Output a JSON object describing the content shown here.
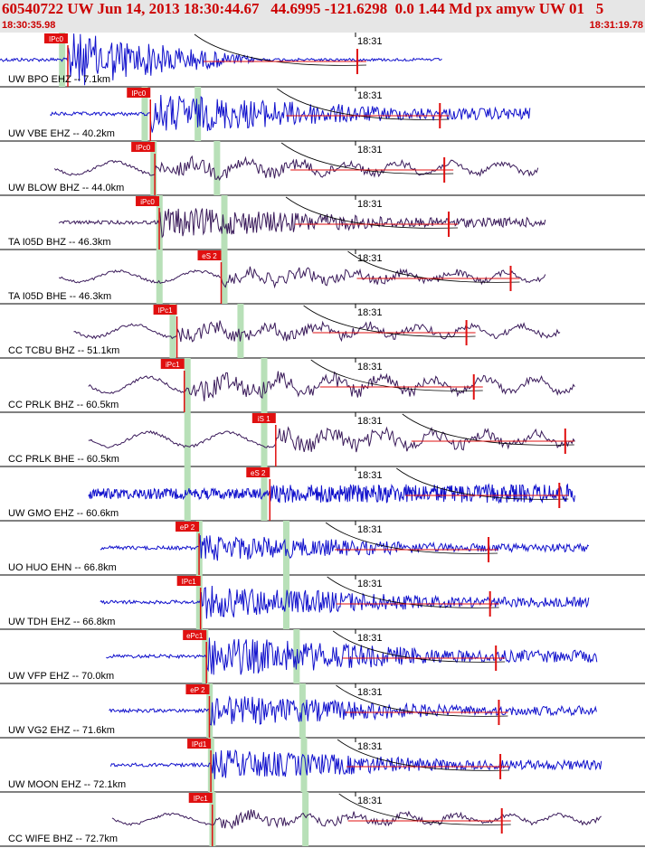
{
  "header": {
    "title": "60540722 UW Jun 14, 2013 18:30:44.67   44.6995 -121.6298  0.0 1.44 Md px amyw UW 01   5",
    "start_time": "18:30:35.98",
    "end_time": "18:31:19.78"
  },
  "time_mark_label": "18:31",
  "colors": {
    "header_text": "#cc0000",
    "header_bg": "#e6e6e6",
    "trace_blue": "#1010cc",
    "trace_purple": "#3a1a5a",
    "pick_box": "#e01010",
    "pick_text": "#ffffff",
    "green_band": "#b8e0b8",
    "red_line": "#e01010",
    "label_text": "#000000"
  },
  "traces": [
    {
      "station": "UW BPO EHZ -- 7.1km",
      "color": "blue",
      "pick": "IPc0",
      "pick_sec": 4.6,
      "green_sec": 4.0,
      "start_sec": 0.0,
      "end_sec": 30.0,
      "amp": 1.0,
      "big": true
    },
    {
      "station": "UW VBE EHZ -- 40.2km",
      "color": "blue",
      "pick": "IPc0",
      "pick_sec": 10.2,
      "green_sec": 9.6,
      "green2_sec": 13.2,
      "start_sec": 3.4,
      "end_sec": 36.0,
      "amp": 0.9
    },
    {
      "station": "UW BLOW BHZ -- 44.0km",
      "color": "purple",
      "pick": "IPc0",
      "pick_sec": 10.5,
      "green_sec": 10.2,
      "green2_sec": 14.5,
      "start_sec": 3.7,
      "end_sec": 36.5,
      "amp": 0.7,
      "lowfreq": true
    },
    {
      "station": "TA I05D BHZ -- 46.3km",
      "color": "purple",
      "pick": "iPc0",
      "pick_sec": 10.8,
      "green_sec": 10.6,
      "green2_sec": 15.0,
      "start_sec": 4.0,
      "end_sec": 37.0,
      "amp": 0.7
    },
    {
      "station": "TA I05D BHE -- 46.3km",
      "color": "purple",
      "pick": "eS 2",
      "pick_sec": 15.0,
      "green_sec": 10.6,
      "green2_sec": 15.0,
      "start_sec": 4.0,
      "end_sec": 37.0,
      "amp": 0.6,
      "lowfreq": true
    },
    {
      "station": "CC TCBU BHZ -- 51.1km",
      "color": "purple",
      "pick": "IPc1",
      "pick_sec": 12.0,
      "green_sec": 11.5,
      "green2_sec": 16.1,
      "start_sec": 5.0,
      "end_sec": 38.0,
      "amp": 0.7,
      "lowfreq": true
    },
    {
      "station": "CC PRLK BHZ -- 60.5km",
      "color": "purple",
      "pick": "iPc1",
      "pick_sec": 12.5,
      "green_sec": 12.5,
      "green2_sec": 17.7,
      "start_sec": 6.0,
      "end_sec": 39.0,
      "amp": 0.9,
      "lowfreq": true
    },
    {
      "station": "CC PRLK BHE -- 60.5km",
      "color": "purple",
      "pick": "iS 1",
      "pick_sec": 18.7,
      "green_sec": 12.5,
      "green2_sec": 17.7,
      "start_sec": 6.0,
      "end_sec": 39.0,
      "amp": 0.8,
      "lowfreq": true
    },
    {
      "station": "UW GMO EHZ -- 60.6km",
      "color": "blue",
      "pick": "eS 2",
      "pick_sec": 18.3,
      "green_sec": 12.5,
      "green2_sec": 17.7,
      "start_sec": 6.0,
      "end_sec": 39.0,
      "amp": 0.85,
      "noise": true
    },
    {
      "station": "UO HUO EHN -- 66.8km",
      "color": "blue",
      "pick": "eP 2",
      "pick_sec": 13.5,
      "green_sec": 13.3,
      "green2_sec": 19.2,
      "start_sec": 6.8,
      "end_sec": 40.0,
      "amp": 0.6
    },
    {
      "station": "UW TDH EHZ -- 66.8km",
      "color": "blue",
      "pick": "IPc1",
      "pick_sec": 13.6,
      "green_sec": 13.3,
      "green2_sec": 19.2,
      "start_sec": 6.8,
      "end_sec": 40.0,
      "amp": 0.75
    },
    {
      "station": "UW VFP EHZ -- 70.0km",
      "color": "blue",
      "pick": "ePc1",
      "pick_sec": 14.0,
      "green_sec": 13.7,
      "green2_sec": 19.9,
      "start_sec": 7.2,
      "end_sec": 40.5,
      "amp": 0.9
    },
    {
      "station": "UW VG2 EHZ -- 71.6km",
      "color": "blue",
      "pick": "eP 2",
      "pick_sec": 14.2,
      "green_sec": 14.0,
      "green2_sec": 20.3,
      "start_sec": 7.4,
      "end_sec": 40.5,
      "amp": 0.7
    },
    {
      "station": "UW MOON EHZ -- 72.1km",
      "color": "blue",
      "pick": "IPd1",
      "pick_sec": 14.3,
      "green_sec": 14.1,
      "green2_sec": 20.4,
      "start_sec": 7.5,
      "end_sec": 40.8,
      "amp": 0.7
    },
    {
      "station": "CC WIFE BHZ -- 72.7km",
      "color": "purple",
      "pick": "IPc1",
      "pick_sec": 14.4,
      "green_sec": 14.2,
      "green2_sec": 20.5,
      "start_sec": 7.6,
      "end_sec": 40.8,
      "amp": 0.55,
      "lowfreq": true
    }
  ]
}
